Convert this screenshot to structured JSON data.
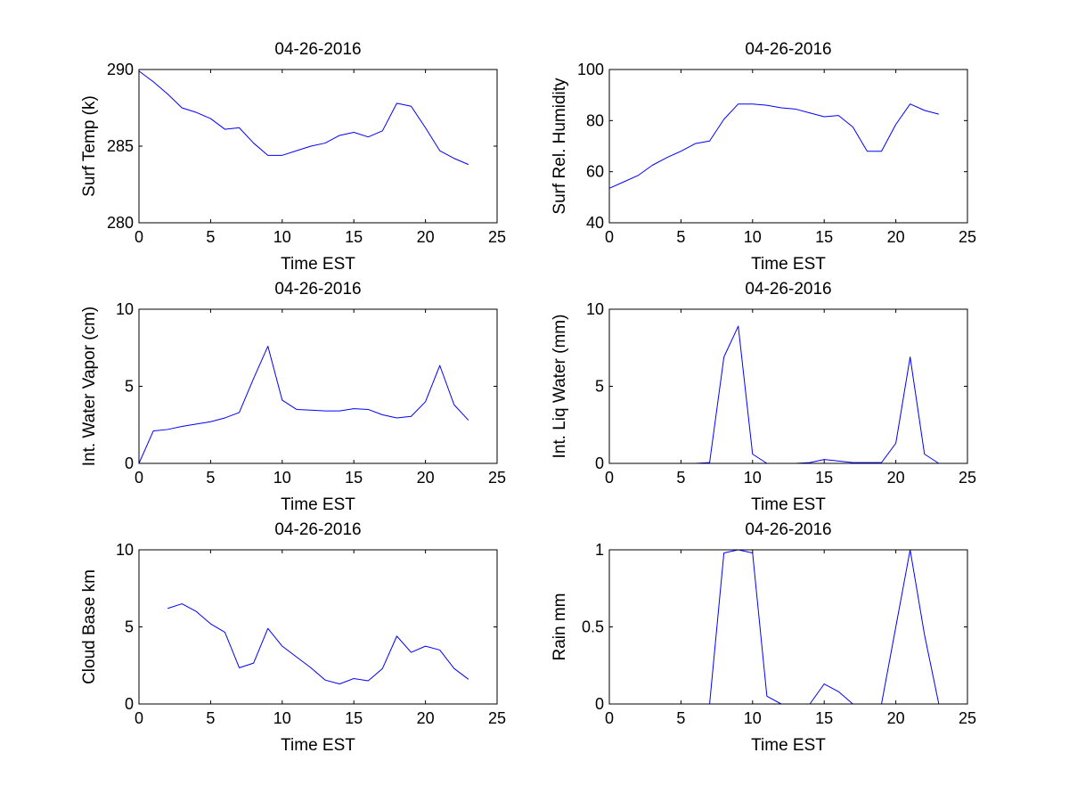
{
  "figure": {
    "background": "#ffffff",
    "line_color": "#0000ff"
  },
  "chart_data": [
    {
      "type": "line",
      "title": "04-26-2016",
      "xlabel": "Time EST",
      "ylabel": "Surf Temp (k)",
      "xlim": [
        0,
        25
      ],
      "ylim": [
        280,
        290
      ],
      "xticks": [
        0,
        5,
        10,
        15,
        20,
        25
      ],
      "yticks": [
        280,
        285,
        290
      ],
      "xticklabels": [
        "0",
        "5",
        "10",
        "15",
        "20",
        "25"
      ],
      "yticklabels": [
        "280",
        "285",
        "290"
      ],
      "series": [
        {
          "name": "Surf Temp",
          "color": "#0000ff",
          "x": [
            0,
            1,
            2,
            3,
            4,
            5,
            6,
            7,
            8,
            9,
            10,
            11,
            12,
            13,
            14,
            15,
            16,
            17,
            18,
            19,
            20,
            21,
            22,
            23
          ],
          "y": [
            289.9,
            289.2,
            288.4,
            287.5,
            287.2,
            286.8,
            286.1,
            286.2,
            285.2,
            284.4,
            284.4,
            284.7,
            285.0,
            285.2,
            285.7,
            285.9,
            285.6,
            286.0,
            287.8,
            287.6,
            286.2,
            284.7,
            284.2,
            283.8
          ]
        }
      ]
    },
    {
      "type": "line",
      "title": "04-26-2016",
      "xlabel": "Time EST",
      "ylabel": "Surf Rel. Humidity",
      "xlim": [
        0,
        25
      ],
      "ylim": [
        40,
        100
      ],
      "xticks": [
        0,
        5,
        10,
        15,
        20,
        25
      ],
      "yticks": [
        40,
        60,
        80,
        100
      ],
      "xticklabels": [
        "0",
        "5",
        "10",
        "15",
        "20",
        "25"
      ],
      "yticklabels": [
        "40",
        "60",
        "80",
        "100"
      ],
      "series": [
        {
          "name": "Surf Rel. Humidity",
          "color": "#0000ff",
          "x": [
            0,
            1,
            2,
            3,
            4,
            5,
            6,
            7,
            8,
            9,
            10,
            11,
            12,
            13,
            14,
            15,
            16,
            17,
            18,
            19,
            20,
            21,
            22,
            23
          ],
          "y": [
            53.5,
            56,
            58.5,
            62.5,
            65.5,
            68,
            71,
            72,
            80.5,
            86.5,
            86.5,
            86,
            85,
            84.5,
            83,
            81.5,
            82,
            77.5,
            68,
            68,
            78.5,
            86.5,
            84,
            82.5
          ]
        }
      ]
    },
    {
      "type": "line",
      "title": "04-26-2016",
      "xlabel": "Time EST",
      "ylabel": "Int. Water Vapor (cm)",
      "xlim": [
        0,
        25
      ],
      "ylim": [
        0,
        10
      ],
      "xticks": [
        0,
        5,
        10,
        15,
        20,
        25
      ],
      "yticks": [
        0,
        5,
        10
      ],
      "xticklabels": [
        "0",
        "5",
        "10",
        "15",
        "20",
        "25"
      ],
      "yticklabels": [
        "0",
        "5",
        "10"
      ],
      "series": [
        {
          "name": "Int. Water Vapor",
          "color": "#0000ff",
          "x": [
            0,
            1,
            2,
            3,
            4,
            5,
            6,
            7,
            8,
            9,
            10,
            11,
            12,
            13,
            14,
            15,
            16,
            17,
            18,
            19,
            20,
            21,
            22,
            23
          ],
          "y": [
            0,
            2.1,
            2.2,
            2.4,
            2.55,
            2.7,
            2.95,
            3.3,
            5.5,
            7.6,
            4.1,
            3.5,
            3.45,
            3.4,
            3.4,
            3.55,
            3.5,
            3.15,
            2.95,
            3.05,
            4.0,
            6.35,
            3.8,
            2.8
          ]
        }
      ]
    },
    {
      "type": "line",
      "title": "04-26-2016",
      "xlabel": "Time EST",
      "ylabel": "Int. Liq Water (mm)",
      "xlim": [
        0,
        25
      ],
      "ylim": [
        0,
        10
      ],
      "xticks": [
        0,
        5,
        10,
        15,
        20,
        25
      ],
      "yticks": [
        0,
        5,
        10
      ],
      "xticklabels": [
        "0",
        "5",
        "10",
        "15",
        "20",
        "25"
      ],
      "yticklabels": [
        "0",
        "5",
        "10"
      ],
      "series": [
        {
          "name": "Int. Liq Water",
          "color": "#0000ff",
          "x": [
            0,
            1,
            2,
            3,
            4,
            5,
            6,
            7,
            8,
            9,
            10,
            11,
            12,
            13,
            14,
            15,
            16,
            17,
            18,
            19,
            20,
            21,
            22,
            23
          ],
          "y": [
            0,
            0,
            0,
            0,
            0,
            0,
            0,
            0.05,
            6.9,
            8.9,
            0.6,
            0,
            0,
            0,
            0.05,
            0.25,
            0.15,
            0.05,
            0.05,
            0.05,
            1.3,
            6.9,
            0.6,
            0
          ]
        }
      ]
    },
    {
      "type": "line",
      "title": "04-26-2016",
      "xlabel": "Time EST",
      "ylabel": "Cloud Base km",
      "xlim": [
        0,
        25
      ],
      "ylim": [
        0,
        10
      ],
      "xticks": [
        0,
        5,
        10,
        15,
        20,
        25
      ],
      "yticks": [
        0,
        5,
        10
      ],
      "xticklabels": [
        "0",
        "5",
        "10",
        "15",
        "20",
        "25"
      ],
      "yticklabels": [
        "0",
        "5",
        "10"
      ],
      "series": [
        {
          "name": "Cloud Base",
          "color": "#0000ff",
          "x": [
            2,
            3,
            4,
            5,
            6,
            7,
            8,
            9,
            10,
            11,
            12,
            13,
            14,
            15,
            16,
            17,
            18,
            19,
            20,
            21,
            22,
            23
          ],
          "y": [
            6.2,
            6.5,
            6.0,
            5.2,
            4.65,
            2.35,
            2.65,
            4.9,
            3.75,
            3.05,
            2.35,
            1.55,
            1.3,
            1.65,
            1.5,
            2.3,
            4.4,
            3.35,
            3.75,
            3.5,
            2.3,
            1.6
          ]
        }
      ]
    },
    {
      "type": "line",
      "title": "04-26-2016",
      "xlabel": "Time EST",
      "ylabel": "Rain mm",
      "xlim": [
        0,
        25
      ],
      "ylim": [
        0,
        1
      ],
      "xticks": [
        0,
        5,
        10,
        15,
        20,
        25
      ],
      "yticks": [
        0,
        0.5,
        1
      ],
      "xticklabels": [
        "0",
        "5",
        "10",
        "15",
        "20",
        "25"
      ],
      "yticklabels": [
        "0",
        "0.5",
        "1"
      ],
      "series": [
        {
          "name": "Rain",
          "color": "#0000ff",
          "x": [
            0,
            1,
            2,
            3,
            4,
            5,
            6,
            7,
            8,
            9,
            10,
            11,
            12,
            13,
            14,
            15,
            16,
            17,
            18,
            19,
            20,
            21,
            22,
            23
          ],
          "y": [
            0,
            0,
            0,
            0,
            0,
            0,
            0,
            0,
            0.98,
            1.0,
            0.98,
            0.05,
            0,
            0,
            0,
            0.13,
            0.08,
            0,
            0,
            0,
            0.5,
            1.0,
            0.45,
            0
          ]
        }
      ]
    }
  ]
}
